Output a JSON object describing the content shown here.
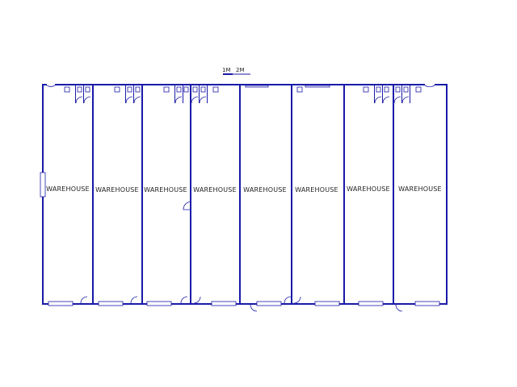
{
  "scale_bar": {
    "label_1": "1M",
    "label_2": "2M"
  },
  "units": [
    {
      "label": "WAREHOUSE"
    },
    {
      "label": "WAREHOUSE"
    },
    {
      "label": "WAREHOUSE"
    },
    {
      "label": "WAREHOUSE"
    },
    {
      "label": "WAREHOUSE"
    },
    {
      "label": "WAREHOUSE"
    },
    {
      "label": "WAREHOUSE"
    },
    {
      "label": "WAREHOUSE"
    }
  ],
  "colors": {
    "wall": "#1a1aa8",
    "text": "#222222",
    "background": "#ffffff"
  }
}
